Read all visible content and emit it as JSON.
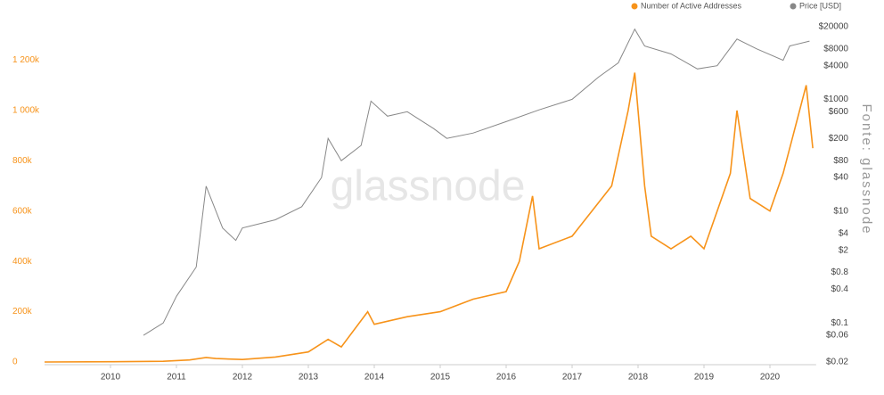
{
  "chart_data": {
    "type": "line",
    "legend": "top-right",
    "grid": false,
    "y_log": false,
    "y2_log": true,
    "watermark": "glassnode",
    "source": "Fonte: glassnode",
    "xlim": [
      2009,
      2020.7
    ],
    "xticks": [
      2010,
      2011,
      2012,
      2013,
      2014,
      2015,
      2016,
      2017,
      2018,
      2019,
      2020
    ],
    "ylim": [
      0,
      1400000
    ],
    "yticks": [
      0,
      {
        "value": 200000,
        "label": "200k"
      },
      {
        "value": 400000,
        "label": "400k"
      },
      {
        "value": 600000,
        "label": "600k"
      },
      {
        "value": 800000,
        "label": "800k"
      },
      {
        "value": 1000000,
        "label": "1 000k"
      },
      {
        "value": 1200000,
        "label": "1 200k"
      }
    ],
    "y2lim": [
      0.02,
      40000
    ],
    "y2ticks": [
      {
        "value": 0.02,
        "label": "$0.02"
      },
      {
        "value": 0.06,
        "label": "$0.06"
      },
      {
        "value": 0.1,
        "label": "$0.1"
      },
      {
        "value": 0.4,
        "label": "$0.4"
      },
      {
        "value": 0.8,
        "label": "$0.8"
      },
      {
        "value": 2,
        "label": "$2"
      },
      {
        "value": 4,
        "label": "$4"
      },
      {
        "value": 10,
        "label": "$10"
      },
      {
        "value": 40,
        "label": "$40"
      },
      {
        "value": 80,
        "label": "$80"
      },
      {
        "value": 200,
        "label": "$200"
      },
      {
        "value": 600,
        "label": "$600"
      },
      {
        "value": 1000,
        "label": "$1000"
      },
      {
        "value": 4000,
        "label": "$4000"
      },
      {
        "value": 8000,
        "label": "$8000"
      },
      {
        "value": 20000,
        "label": "$20000"
      }
    ],
    "series": [
      {
        "name": "Number of Active Addresses",
        "color": "#f7931a",
        "axis": "y",
        "x": [
          2009.0,
          2010.0,
          2010.8,
          2011.2,
          2011.45,
          2011.6,
          2012.0,
          2012.5,
          2013.0,
          2013.3,
          2013.5,
          2013.9,
          2014.0,
          2014.5,
          2015.0,
          2015.5,
          2016.0,
          2016.2,
          2016.4,
          2016.5,
          2017.0,
          2017.3,
          2017.6,
          2017.85,
          2017.95,
          2018.1,
          2018.2,
          2018.5,
          2018.8,
          2019.0,
          2019.4,
          2019.5,
          2019.7,
          2020.0,
          2020.2,
          2020.4,
          2020.55,
          2020.65
        ],
        "values": [
          0,
          1000,
          3000,
          8000,
          18000,
          14000,
          10000,
          20000,
          40000,
          90000,
          60000,
          200000,
          150000,
          180000,
          200000,
          250000,
          280000,
          400000,
          660000,
          450000,
          500000,
          600000,
          700000,
          1000000,
          1150000,
          700000,
          500000,
          450000,
          500000,
          450000,
          750000,
          1000000,
          650000,
          600000,
          750000,
          950000,
          1100000,
          850000
        ]
      },
      {
        "name": "Price [USD]",
        "color": "#888888",
        "axis": "y2",
        "x": [
          2010.5,
          2010.8,
          2011.0,
          2011.3,
          2011.45,
          2011.7,
          2011.9,
          2012.0,
          2012.5,
          2012.9,
          2013.2,
          2013.3,
          2013.5,
          2013.8,
          2013.95,
          2014.2,
          2014.5,
          2014.9,
          2015.1,
          2015.5,
          2016.0,
          2016.5,
          2017.0,
          2017.4,
          2017.7,
          2017.95,
          2018.1,
          2018.5,
          2018.9,
          2019.2,
          2019.5,
          2019.8,
          2020.2,
          2020.3,
          2020.6
        ],
        "values": [
          0.06,
          0.1,
          0.3,
          1,
          28,
          5,
          3,
          5,
          7,
          12,
          40,
          200,
          80,
          150,
          930,
          500,
          600,
          300,
          200,
          250,
          400,
          650,
          1000,
          2500,
          4500,
          18000,
          9000,
          6500,
          3500,
          4000,
          12000,
          8000,
          5000,
          9000,
          11000
        ]
      }
    ]
  }
}
